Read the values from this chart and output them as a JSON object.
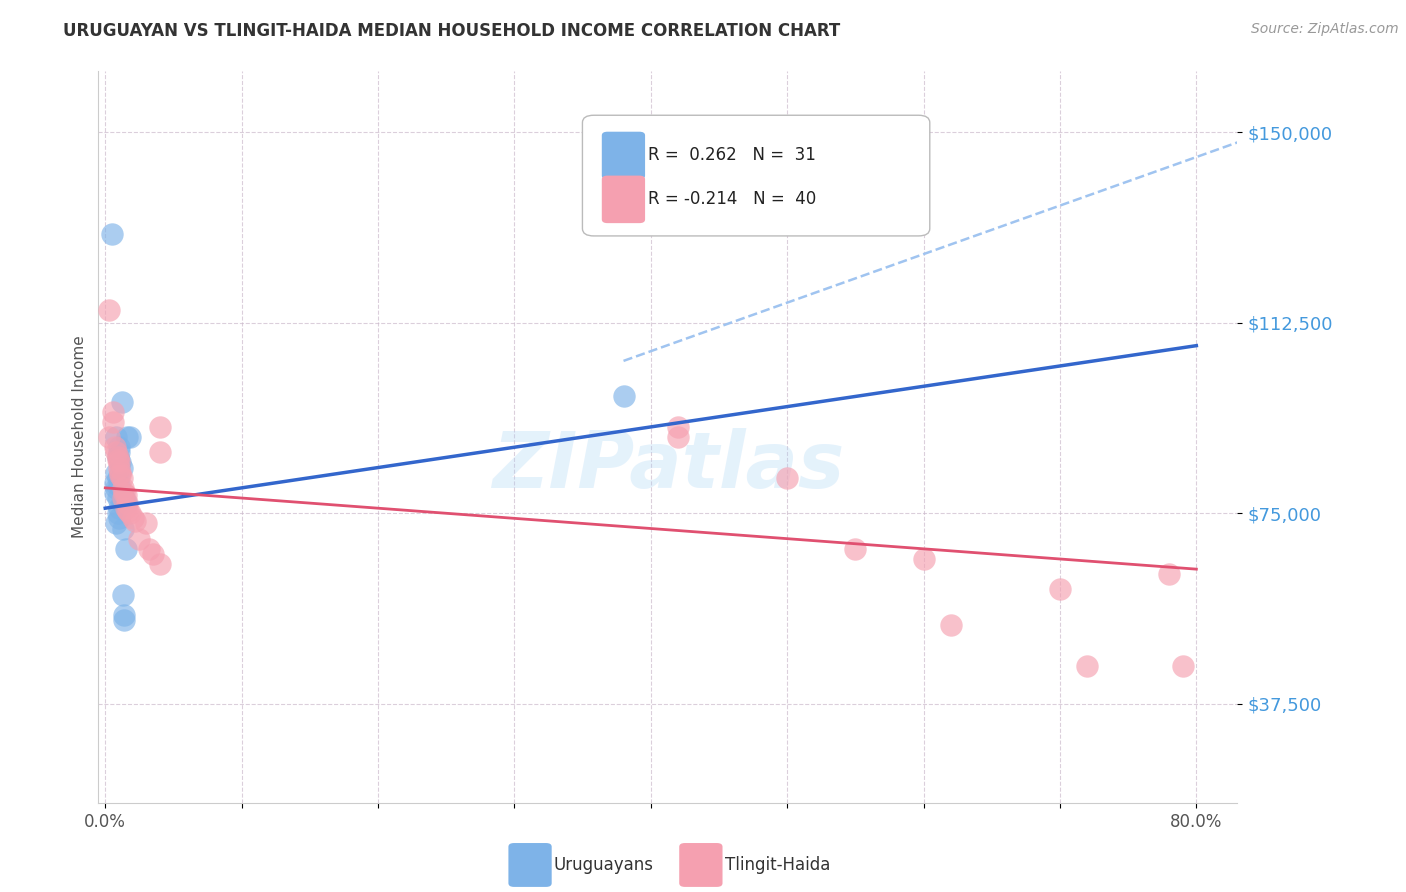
{
  "title": "URUGUAYAN VS TLINGIT-HAIDA MEDIAN HOUSEHOLD INCOME CORRELATION CHART",
  "source": "Source: ZipAtlas.com",
  "ylabel": "Median Household Income",
  "ytick_labels": [
    "$37,500",
    "$75,000",
    "$112,500",
    "$150,000"
  ],
  "ytick_values": [
    37500,
    75000,
    112500,
    150000
  ],
  "ymin": 18000,
  "ymax": 162000,
  "xmin": -0.005,
  "xmax": 0.83,
  "blue_r": 0.262,
  "blue_n": 31,
  "pink_r": -0.214,
  "pink_n": 40,
  "blue_label": "Uruguayans",
  "pink_label": "Tlingit-Haida",
  "watermark": "ZIPatlas",
  "blue_color": "#7EB3E8",
  "pink_color": "#F5A0B0",
  "blue_line_color": "#3366CC",
  "pink_line_color": "#E05070",
  "dashed_line_color": "#A0C4F0",
  "blue_scatter": [
    [
      0.005,
      130000
    ],
    [
      0.012,
      97000
    ],
    [
      0.008,
      90000
    ],
    [
      0.01,
      88000
    ],
    [
      0.01,
      87000
    ],
    [
      0.009,
      86000
    ],
    [
      0.011,
      85000
    ],
    [
      0.012,
      84000
    ],
    [
      0.008,
      83000
    ],
    [
      0.009,
      82000
    ],
    [
      0.007,
      81000
    ],
    [
      0.01,
      80500
    ],
    [
      0.008,
      80000
    ],
    [
      0.007,
      79000
    ],
    [
      0.009,
      78000
    ],
    [
      0.013,
      78000
    ],
    [
      0.014,
      78000
    ],
    [
      0.016,
      90000
    ],
    [
      0.018,
      90000
    ],
    [
      0.015,
      77000
    ],
    [
      0.012,
      77000
    ],
    [
      0.01,
      76000
    ],
    [
      0.009,
      75000
    ],
    [
      0.01,
      74000
    ],
    [
      0.008,
      73000
    ],
    [
      0.013,
      72000
    ],
    [
      0.015,
      68000
    ],
    [
      0.013,
      59000
    ],
    [
      0.014,
      55000
    ],
    [
      0.014,
      54000
    ],
    [
      0.38,
      98000
    ]
  ],
  "pink_scatter": [
    [
      0.003,
      115000
    ],
    [
      0.003,
      90000
    ],
    [
      0.006,
      95000
    ],
    [
      0.006,
      93000
    ],
    [
      0.007,
      88000
    ],
    [
      0.008,
      87000
    ],
    [
      0.009,
      86000
    ],
    [
      0.009,
      85500
    ],
    [
      0.01,
      85000
    ],
    [
      0.01,
      84000
    ],
    [
      0.011,
      83000
    ],
    [
      0.011,
      82500
    ],
    [
      0.012,
      82000
    ],
    [
      0.013,
      80000
    ],
    [
      0.014,
      79000
    ],
    [
      0.015,
      78500
    ],
    [
      0.013,
      78000
    ],
    [
      0.016,
      77000
    ],
    [
      0.015,
      76000
    ],
    [
      0.017,
      75500
    ],
    [
      0.018,
      75000
    ],
    [
      0.02,
      74000
    ],
    [
      0.022,
      73500
    ],
    [
      0.03,
      73000
    ],
    [
      0.025,
      70000
    ],
    [
      0.032,
      68000
    ],
    [
      0.035,
      67000
    ],
    [
      0.04,
      65000
    ],
    [
      0.04,
      87000
    ],
    [
      0.04,
      92000
    ],
    [
      0.42,
      92000
    ],
    [
      0.42,
      90000
    ],
    [
      0.5,
      82000
    ],
    [
      0.55,
      68000
    ],
    [
      0.6,
      66000
    ],
    [
      0.62,
      53000
    ],
    [
      0.7,
      60000
    ],
    [
      0.72,
      45000
    ],
    [
      0.78,
      63000
    ],
    [
      0.79,
      45000
    ]
  ],
  "blue_line_x": [
    0.0,
    0.8
  ],
  "blue_line_y": [
    76000,
    108000
  ],
  "pink_line_x": [
    0.0,
    0.8
  ],
  "pink_line_y": [
    80000,
    64000
  ],
  "dashed_line_x": [
    0.38,
    0.83
  ],
  "dashed_line_y": [
    105000,
    148000
  ]
}
